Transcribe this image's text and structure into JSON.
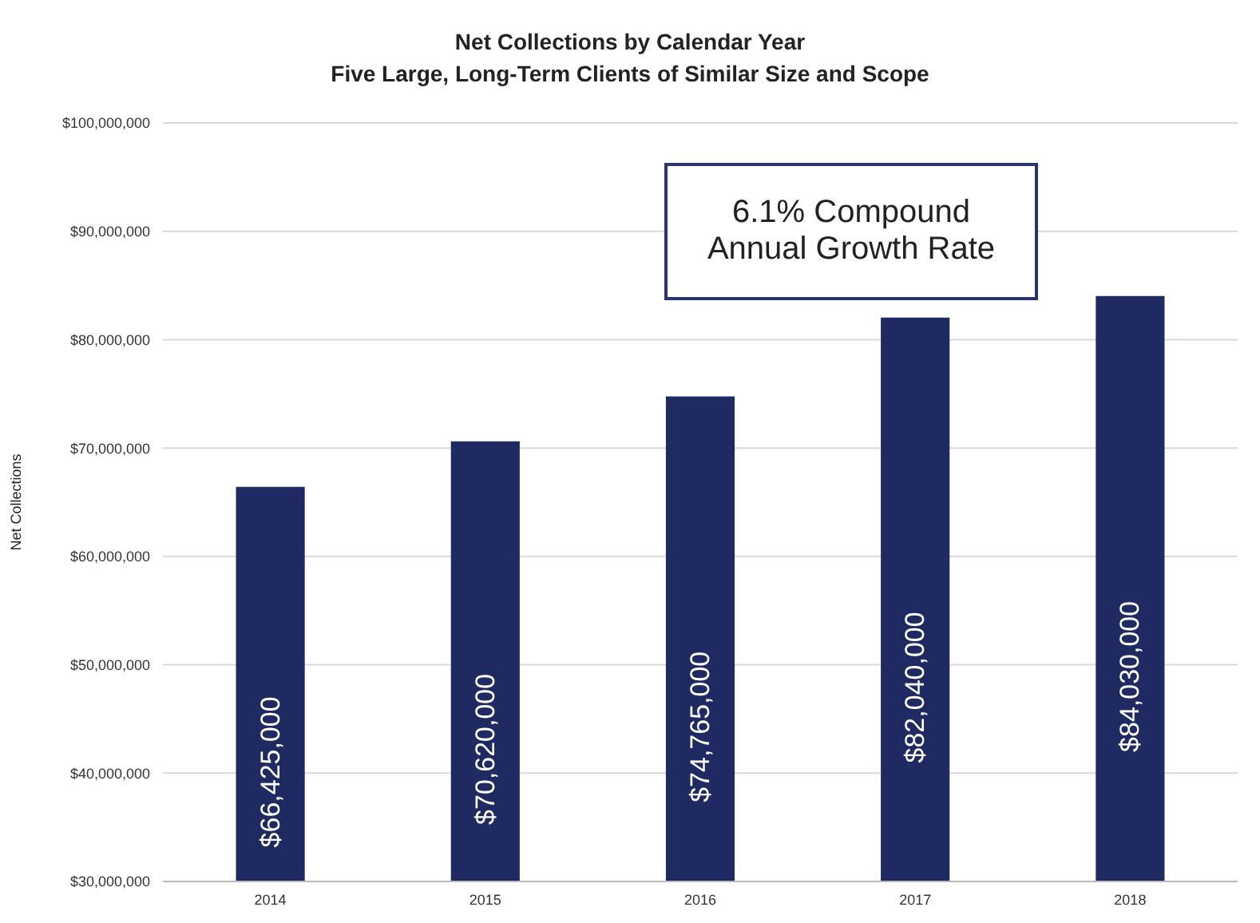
{
  "chart_data": {
    "type": "bar",
    "title": "Net Collections by Calendar Year",
    "subtitle": "Five Large, Long-Term Clients of Similar Size and Scope",
    "ylabel": "Net Collections",
    "categories": [
      "2014",
      "2015",
      "2016",
      "2017",
      "2018"
    ],
    "values": [
      66425000,
      70620000,
      74765000,
      82040000,
      84030000
    ],
    "value_labels": [
      "$66,425,000",
      "$70,620,000",
      "$74,765,000",
      "$82,040,000",
      "$84,030,000"
    ],
    "color": "#1f2a63",
    "ylim": [
      30000000,
      100000000
    ],
    "yticks": [
      {
        "value": 30000000,
        "label": "$30,000,000"
      },
      {
        "value": 40000000,
        "label": "$40,000,000"
      },
      {
        "value": 50000000,
        "label": "$50,000,000"
      },
      {
        "value": 60000000,
        "label": "$60,000,000"
      },
      {
        "value": 70000000,
        "label": "$70,000,000"
      },
      {
        "value": 80000000,
        "label": "$80,000,000"
      },
      {
        "value": 90000000,
        "label": "$90,000,000"
      },
      {
        "value": 100000000,
        "label": "$100,000,000"
      }
    ],
    "grid": "y",
    "annotations": [
      "6.1% Compound Annual Growth Rate"
    ]
  }
}
